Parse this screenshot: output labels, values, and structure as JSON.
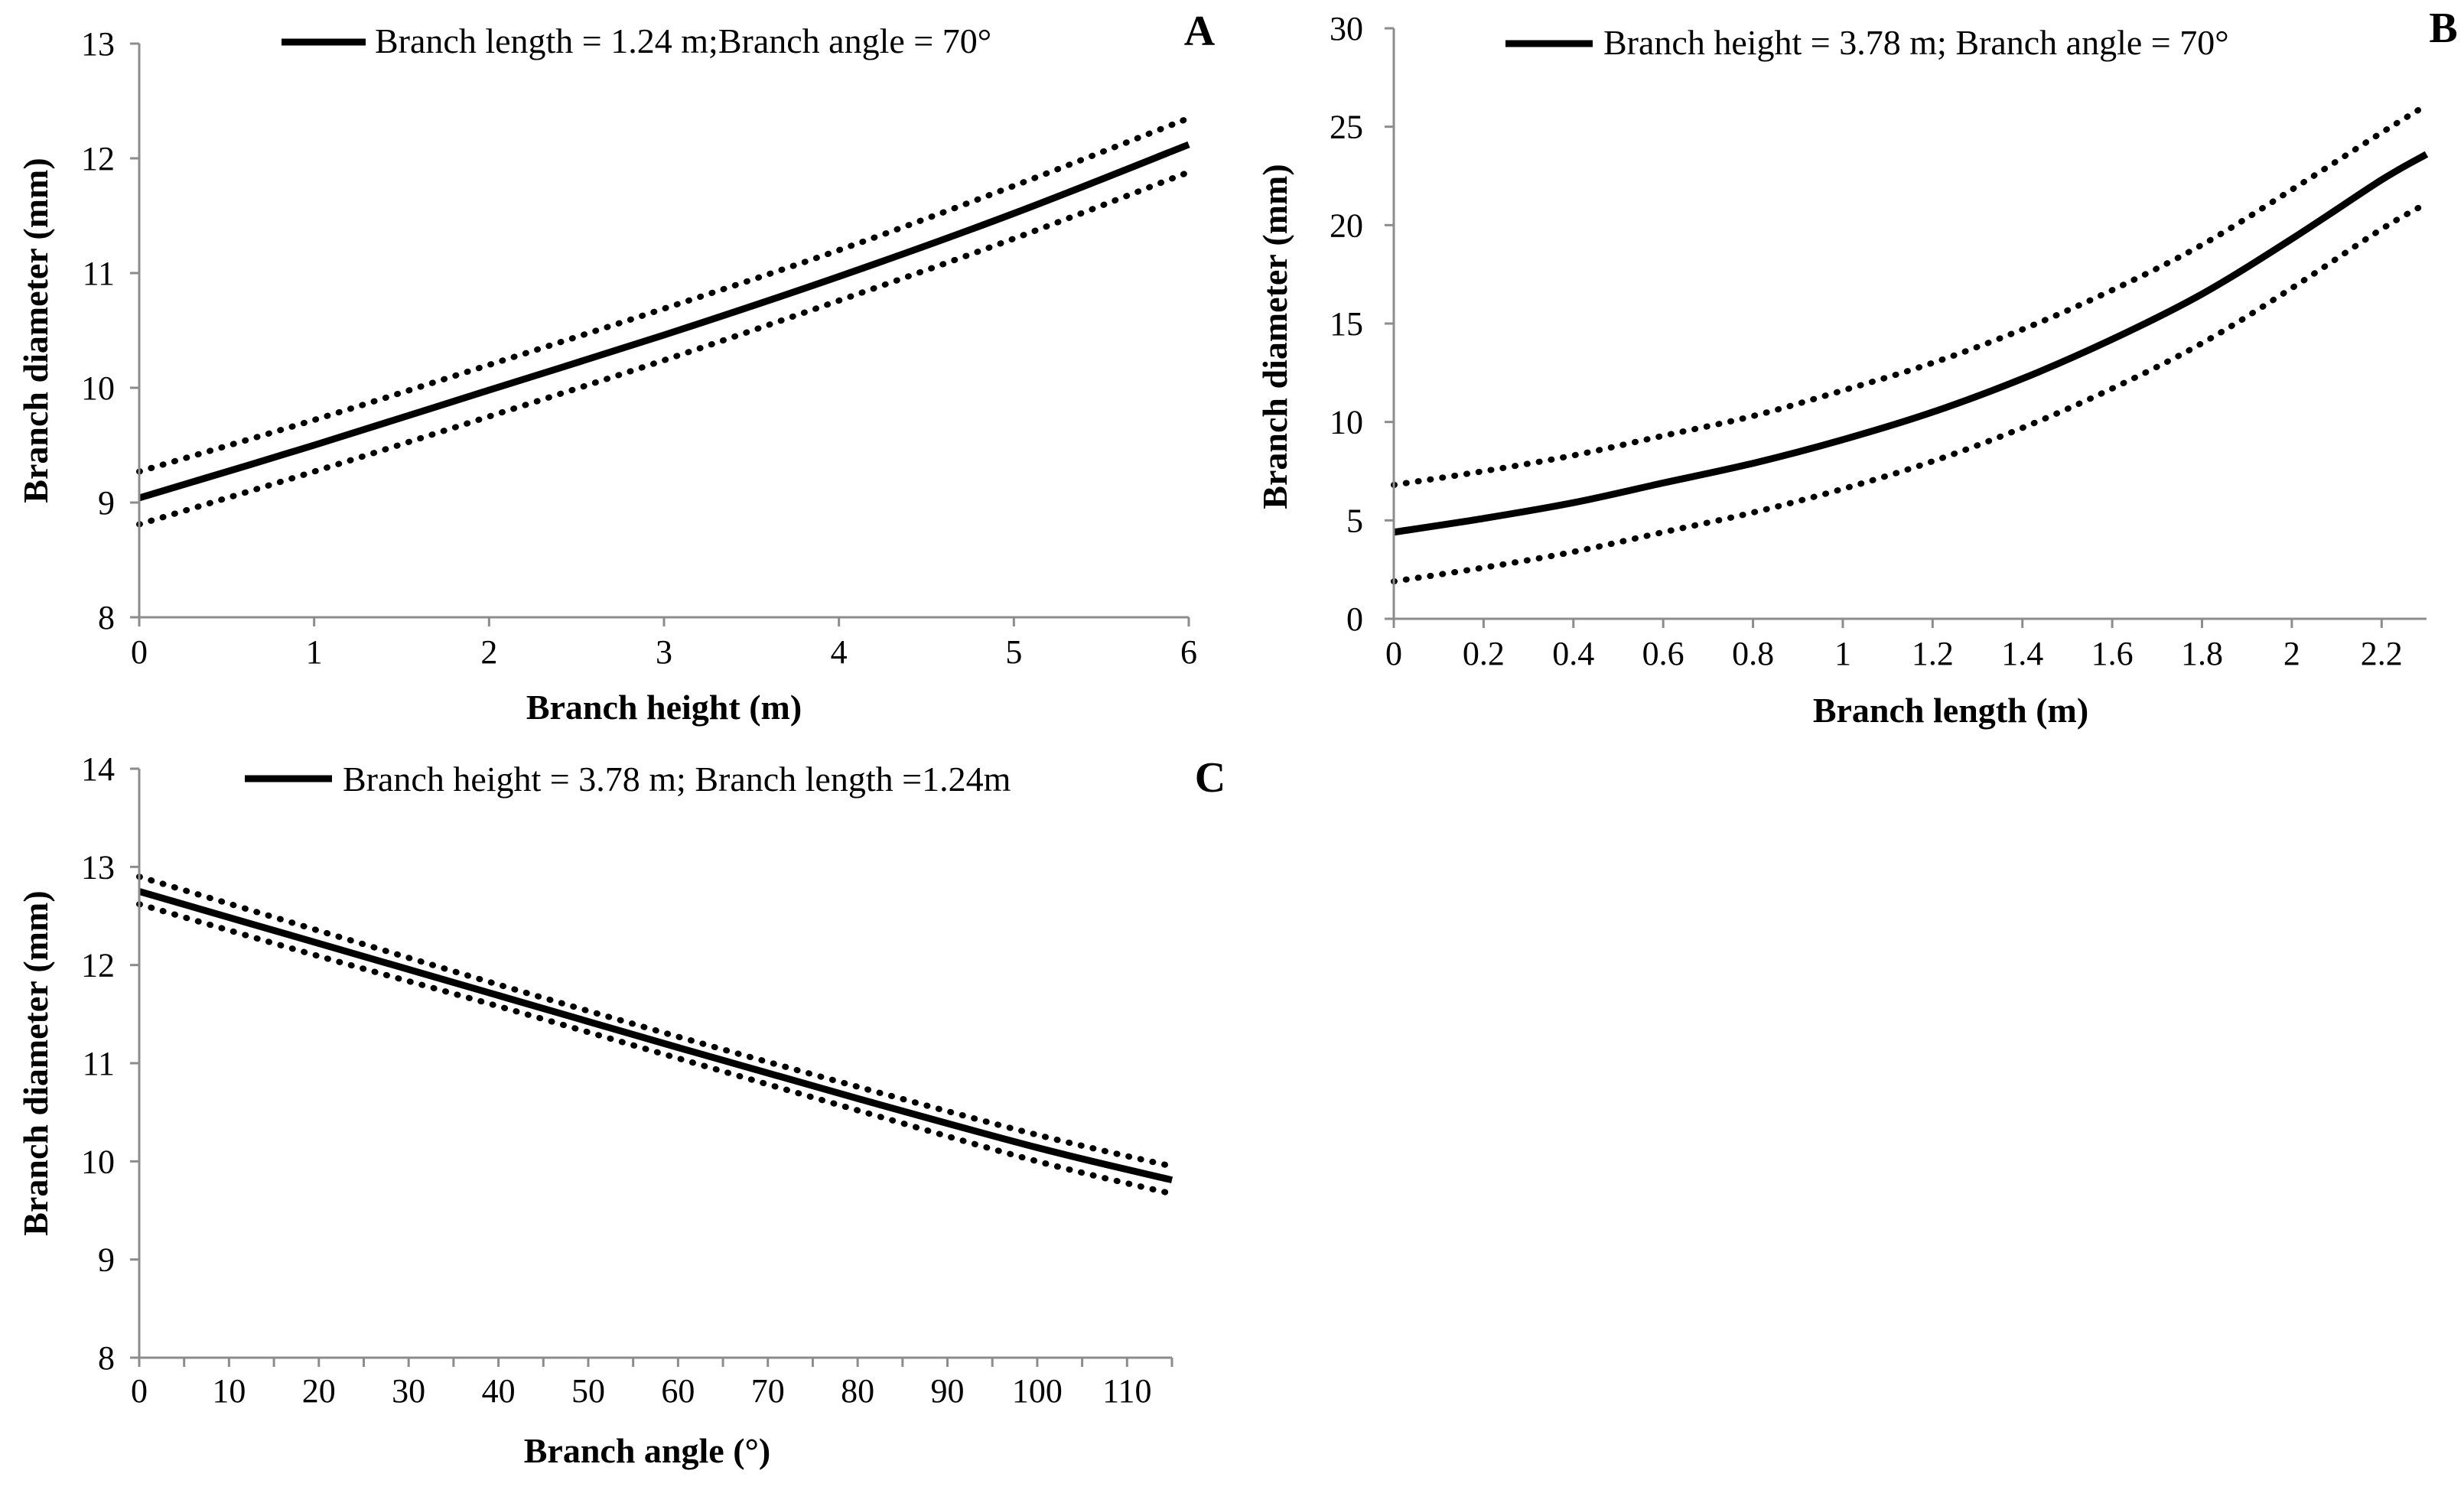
{
  "chart_data": [
    {
      "type": "line",
      "panel_label": "A",
      "legend": "Branch length = 1.24 m;Branch angle = 70°",
      "xlabel": "Branch height (m)",
      "ylabel": "Branch diameter (mm)",
      "xlim": [
        0,
        6
      ],
      "ylim": [
        8,
        13
      ],
      "x_ticks": [
        0,
        1,
        2,
        3,
        4,
        5,
        6
      ],
      "x_tick_labels": [
        "0",
        "1",
        "2",
        "3",
        "4",
        "5",
        "6"
      ],
      "y_ticks": [
        8,
        9,
        10,
        11,
        12,
        13
      ],
      "y_tick_labels": [
        "8",
        "9",
        "10",
        "11",
        "12",
        "13"
      ],
      "series": [
        {
          "name": "fit",
          "style": "solid",
          "x": [
            0,
            1,
            2,
            3,
            4,
            5,
            6
          ],
          "values": [
            9.04,
            9.5,
            9.98,
            10.46,
            10.97,
            11.52,
            12.12
          ]
        },
        {
          "name": "upper 95% CI",
          "style": "dotted",
          "x": [
            0,
            1,
            2,
            3,
            4,
            5,
            6
          ],
          "values": [
            9.27,
            9.72,
            10.2,
            10.69,
            11.2,
            11.76,
            12.35
          ]
        },
        {
          "name": "lower 95% CI",
          "style": "dotted",
          "x": [
            0,
            1,
            2,
            3,
            4,
            5,
            6
          ],
          "values": [
            8.81,
            9.27,
            9.75,
            10.24,
            10.76,
            11.3,
            11.88
          ]
        }
      ]
    },
    {
      "type": "line",
      "panel_label": "B",
      "legend": "Branch height = 3.78 m; Branch angle = 70°",
      "xlabel": "Branch length (m)",
      "ylabel": "Branch diameter (mm)",
      "xlim": [
        0,
        2.3
      ],
      "ylim": [
        0,
        30
      ],
      "x_ticks": [
        0,
        0.2,
        0.4,
        0.6,
        0.8,
        1,
        1.2,
        1.4,
        1.6,
        1.8,
        2,
        2.2
      ],
      "x_tick_labels": [
        "0",
        "0.2",
        "0.4",
        "0.6",
        "0.8",
        "1",
        "1.2",
        "1.4",
        "1.6",
        "1.8",
        "2",
        "2.2"
      ],
      "y_ticks": [
        0,
        5,
        10,
        15,
        20,
        25,
        30
      ],
      "y_tick_labels": [
        "0",
        "5",
        "10",
        "15",
        "20",
        "25",
        "30"
      ],
      "series": [
        {
          "name": "fit",
          "style": "solid",
          "x": [
            0,
            0.2,
            0.4,
            0.6,
            0.8,
            1,
            1.2,
            1.4,
            1.6,
            1.8,
            2,
            2.2,
            2.3
          ],
          "values": [
            4.4,
            5.1,
            5.9,
            6.9,
            7.9,
            9.1,
            10.5,
            12.2,
            14.2,
            16.5,
            19.3,
            22.3,
            23.6
          ]
        },
        {
          "name": "upper 95% CI",
          "style": "dotted",
          "x": [
            0,
            0.2,
            0.4,
            0.6,
            0.8,
            1,
            1.2,
            1.4,
            1.6,
            1.8,
            2,
            2.2,
            2.3
          ],
          "values": [
            6.8,
            7.5,
            8.3,
            9.3,
            10.3,
            11.6,
            13.0,
            14.7,
            16.7,
            19.0,
            21.8,
            24.7,
            26.1
          ]
        },
        {
          "name": "lower 95% CI",
          "style": "dotted",
          "x": [
            0,
            0.2,
            0.4,
            0.6,
            0.8,
            1,
            1.2,
            1.4,
            1.6,
            1.8,
            2,
            2.2,
            2.3
          ],
          "values": [
            1.9,
            2.6,
            3.4,
            4.4,
            5.4,
            6.6,
            8.0,
            9.7,
            11.7,
            14.0,
            16.8,
            19.8,
            21.1
          ]
        }
      ]
    },
    {
      "type": "line",
      "panel_label": "C",
      "legend": "Branch height = 3.78 m; Branch length =1.24m",
      "xlabel": "Branch angle (°)",
      "ylabel": "Branch diameter (mm)",
      "xlim": [
        0,
        115
      ],
      "ylim": [
        8,
        14
      ],
      "x_ticks": [
        0,
        10,
        20,
        30,
        40,
        50,
        60,
        70,
        80,
        90,
        100,
        110
      ],
      "x_tick_labels": [
        "0",
        "10",
        "20",
        "30",
        "40",
        "50",
        "60",
        "70",
        "80",
        "90",
        "100",
        "110"
      ],
      "x_minor_step": 5,
      "y_ticks": [
        8,
        9,
        10,
        11,
        12,
        13,
        14
      ],
      "y_tick_labels": [
        "8",
        "9",
        "10",
        "11",
        "12",
        "13",
        "14"
      ],
      "series": [
        {
          "name": "fit",
          "style": "solid",
          "x": [
            0,
            20,
            40,
            60,
            80,
            100,
            115
          ],
          "values": [
            12.75,
            12.22,
            11.69,
            11.16,
            10.64,
            10.14,
            9.81
          ]
        },
        {
          "name": "upper 95% CI",
          "style": "dotted",
          "x": [
            0,
            20,
            40,
            60,
            80,
            100,
            115
          ],
          "values": [
            12.9,
            12.35,
            11.8,
            11.27,
            10.76,
            10.27,
            9.95
          ]
        },
        {
          "name": "lower 95% CI",
          "style": "dotted",
          "x": [
            0,
            20,
            40,
            60,
            80,
            100,
            115
          ],
          "values": [
            12.62,
            12.09,
            11.58,
            11.05,
            10.52,
            10.0,
            9.67
          ]
        }
      ]
    }
  ]
}
